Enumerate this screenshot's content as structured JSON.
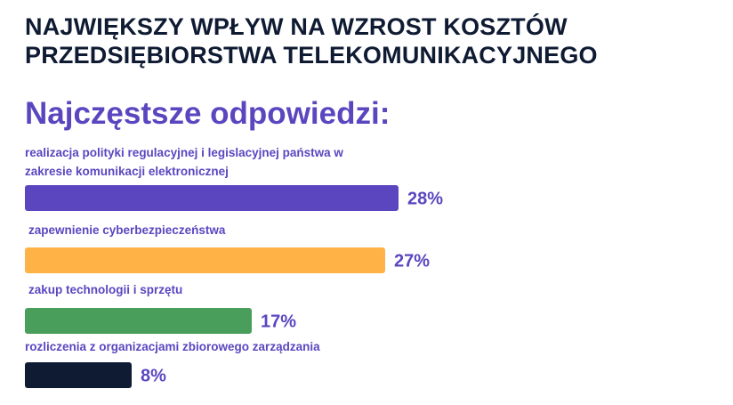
{
  "header": {
    "title": "NAJWIĘKSZY WPŁYW NA WZROST KOSZTÓW PRZEDSIĘBIORSTWA TELEKOMUNIKACYJNEGO",
    "subtitle": "Najczęstsze odpowiedzi:"
  },
  "chart_data": {
    "type": "bar",
    "orientation": "horizontal",
    "categories": [
      [
        "realizacja polityki regulacyjnej i legislacyjnej państwa w",
        "zakresie komunikacji elektronicznej"
      ],
      [
        "zapewnienie cyberbezpieczeństwa"
      ],
      [
        "zakup technologii i sprzętu"
      ],
      [
        "rozliczenia z organizacjami zbiorowego zarządzania"
      ]
    ],
    "values": [
      28,
      27,
      17,
      8
    ],
    "value_labels": [
      "28%",
      "27%",
      "17%",
      "8%"
    ],
    "colors": [
      "#5b46c0",
      "#ffb347",
      "#4a9e5c",
      "#0f1b33"
    ],
    "xlim": [
      0,
      30
    ],
    "grid": false,
    "legend": "none"
  }
}
